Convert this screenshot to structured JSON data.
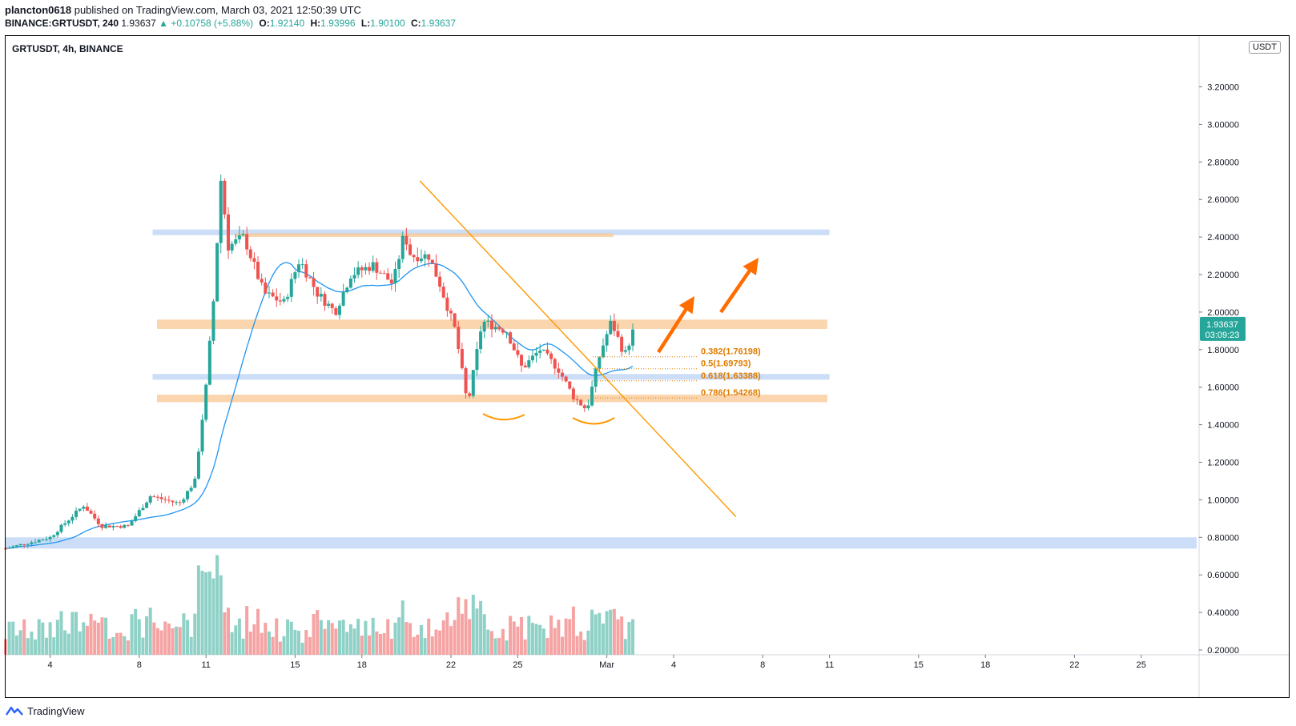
{
  "header": {
    "author": "plancton0618",
    "published": "published on TradingView.com, March 03, 2021 12:50:39 UTC",
    "symbol": "BINANCE:GRTUSDT, 240",
    "last": "1.93637",
    "change": "▲ +0.10758 (+5.88%)",
    "o_label": "O:",
    "o_value": "1.92140",
    "h_label": "H:",
    "h_value": "1.93996",
    "l_label": "L:",
    "l_value": "1.90100",
    "c_label": "C:",
    "c_value": "1.93637"
  },
  "chart_title": "GRTUSDT, 4h, BINANCE",
  "currency": "USDT",
  "footer": {
    "brand": "TradingView"
  },
  "colors": {
    "up": "#26a69a",
    "down": "#ef5350",
    "vol_up": "#8fd1c6",
    "vol_down": "#f5a3a3",
    "ma": "#2196f3",
    "trend": "#ff9800",
    "zone_orange": "#f8c792",
    "zone_blue": "#a9c6f2",
    "fib": "#e07c00",
    "arrow": "#ff6d00",
    "price_tag": "#26a69a"
  },
  "chart_data": {
    "type": "candlestick",
    "title": "GRTUSDT, 4h, BINANCE",
    "timeframe": "4h",
    "ylim": [
      0.2,
      3.4
    ],
    "y_ticks": [
      0.2,
      0.4,
      0.6,
      0.8,
      1.0,
      1.2,
      1.4,
      1.6,
      1.8,
      2.0,
      2.2,
      2.4,
      2.6,
      2.8,
      3.0,
      3.2
    ],
    "y_tick_labels": [
      "0.20000",
      "0.40000",
      "0.60000",
      "0.80000",
      "1.00000",
      "1.20000",
      "1.40000",
      "1.60000",
      "1.80000",
      "2.00000",
      "2.20000",
      "2.40000",
      "2.60000",
      "2.80000",
      "3.00000",
      "3.20000"
    ],
    "x_range_days": [
      2.0,
      29.8
    ],
    "x_ticks": [
      {
        "day": 4,
        "label": "4"
      },
      {
        "day": 8,
        "label": "8"
      },
      {
        "day": 11,
        "label": "11"
      },
      {
        "day": 15,
        "label": "15"
      },
      {
        "day": 18,
        "label": "18"
      },
      {
        "day": 22,
        "label": "22"
      },
      {
        "day": 25,
        "label": "25"
      },
      {
        "day": 29,
        "label": "Mar"
      },
      {
        "day": 32,
        "label": "4"
      },
      {
        "day": 36,
        "label": "8"
      },
      {
        "day": 39,
        "label": "11"
      },
      {
        "day": 43,
        "label": "15"
      },
      {
        "day": 46,
        "label": "18"
      },
      {
        "day": 50,
        "label": "22"
      },
      {
        "day": 53,
        "label": "25"
      }
    ],
    "price_anchors": [
      {
        "day": 2.0,
        "close": 0.74
      },
      {
        "day": 4.0,
        "close": 0.8
      },
      {
        "day": 5.5,
        "close": 0.97
      },
      {
        "day": 6.3,
        "close": 0.86
      },
      {
        "day": 7.5,
        "close": 0.86
      },
      {
        "day": 8.5,
        "close": 1.02
      },
      {
        "day": 9.8,
        "close": 0.98
      },
      {
        "day": 10.5,
        "close": 1.1
      },
      {
        "day": 11.0,
        "close": 1.6
      },
      {
        "day": 11.4,
        "close": 2.15
      },
      {
        "day": 11.65,
        "close": 2.72
      },
      {
        "day": 12.0,
        "close": 2.35
      },
      {
        "day": 12.7,
        "close": 2.4
      },
      {
        "day": 13.6,
        "close": 2.1
      },
      {
        "day": 14.5,
        "close": 2.05
      },
      {
        "day": 15.2,
        "close": 2.28
      },
      {
        "day": 16.0,
        "close": 2.1
      },
      {
        "day": 16.8,
        "close": 2.0
      },
      {
        "day": 17.5,
        "close": 2.2
      },
      {
        "day": 18.5,
        "close": 2.25
      },
      {
        "day": 19.4,
        "close": 2.15
      },
      {
        "day": 19.9,
        "close": 2.42
      },
      {
        "day": 20.2,
        "close": 2.3
      },
      {
        "day": 21.0,
        "close": 2.3
      },
      {
        "day": 21.5,
        "close": 2.15
      },
      {
        "day": 22.2,
        "close": 1.9
      },
      {
        "day": 22.75,
        "close": 1.5
      },
      {
        "day": 23.4,
        "close": 1.95
      },
      {
        "day": 24.5,
        "close": 1.9
      },
      {
        "day": 25.2,
        "close": 1.7
      },
      {
        "day": 26.0,
        "close": 1.8
      },
      {
        "day": 26.8,
        "close": 1.7
      },
      {
        "day": 27.5,
        "close": 1.55
      },
      {
        "day": 28.1,
        "close": 1.48
      },
      {
        "day": 28.7,
        "close": 1.78
      },
      {
        "day": 29.2,
        "close": 1.95
      },
      {
        "day": 29.8,
        "close": 1.77
      },
      {
        "day": 30.3,
        "close": 1.94
      }
    ],
    "zones": [
      {
        "color": "blue",
        "day_from": 8.6,
        "day_to": 39.0,
        "low": 2.41,
        "high": 2.44
      },
      {
        "color": "orange",
        "day_from": 12.3,
        "day_to": 29.3,
        "low": 2.4,
        "high": 2.42
      },
      {
        "color": "orange",
        "day_from": 8.8,
        "day_to": 38.9,
        "low": 1.91,
        "high": 1.96
      },
      {
        "color": "blue",
        "day_from": 8.6,
        "day_to": 39.0,
        "low": 1.64,
        "high": 1.67
      },
      {
        "color": "orange",
        "day_from": 8.8,
        "day_to": 38.9,
        "low": 1.52,
        "high": 1.56
      },
      {
        "color": "blue",
        "day_from": 2.0,
        "day_to": 56.0,
        "low": 0.74,
        "high": 0.8
      }
    ],
    "trendline": {
      "from": {
        "day": 20.6,
        "price": 2.7
      },
      "to": {
        "day": 34.8,
        "price": 0.91
      }
    },
    "fib_levels": [
      {
        "label": "0.382(1.76198)",
        "price": 1.76198
      },
      {
        "label": "0.5(1.69793)",
        "price": 1.69793
      },
      {
        "label": "0.618(1.63388)",
        "price": 1.63388
      },
      {
        "label": "0.786(1.54268)",
        "price": 1.54268
      }
    ],
    "last_price_tag": {
      "price": "1.93637",
      "countdown": "03:09:23"
    }
  }
}
